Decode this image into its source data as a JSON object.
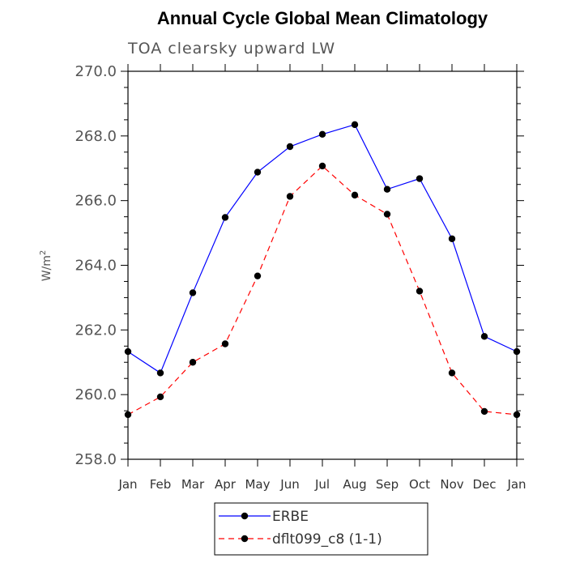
{
  "chart_data": {
    "type": "line",
    "title": "Annual Cycle Global Mean Climatology",
    "subtitle": "TOA clearsky upward LW",
    "ylabel": "W/m",
    "ylabel_sup": "2",
    "xlabel": "",
    "ylim": [
      258.0,
      270.0
    ],
    "yticks": [
      "258.0",
      "260.0",
      "262.0",
      "264.0",
      "266.0",
      "268.0",
      "270.0"
    ],
    "categories": [
      "Jan",
      "Feb",
      "Mar",
      "Apr",
      "May",
      "Jun",
      "Jul",
      "Aug",
      "Sep",
      "Oct",
      "Nov",
      "Dec",
      "Jan"
    ],
    "series": [
      {
        "name": "ERBE",
        "color": "#0000ff",
        "style": "solid",
        "values": [
          261.33,
          260.67,
          263.15,
          265.48,
          266.88,
          267.67,
          268.05,
          268.35,
          266.35,
          266.68,
          264.82,
          261.8,
          261.33
        ]
      },
      {
        "name": "dflt099_c8 (1-1)",
        "color": "#ff0000",
        "style": "dashed",
        "values": [
          259.38,
          259.93,
          261.0,
          261.57,
          263.67,
          266.13,
          267.07,
          266.17,
          265.58,
          263.2,
          260.67,
          259.48,
          259.38
        ]
      }
    ],
    "grid": false,
    "legend_position": "bottom-center"
  }
}
